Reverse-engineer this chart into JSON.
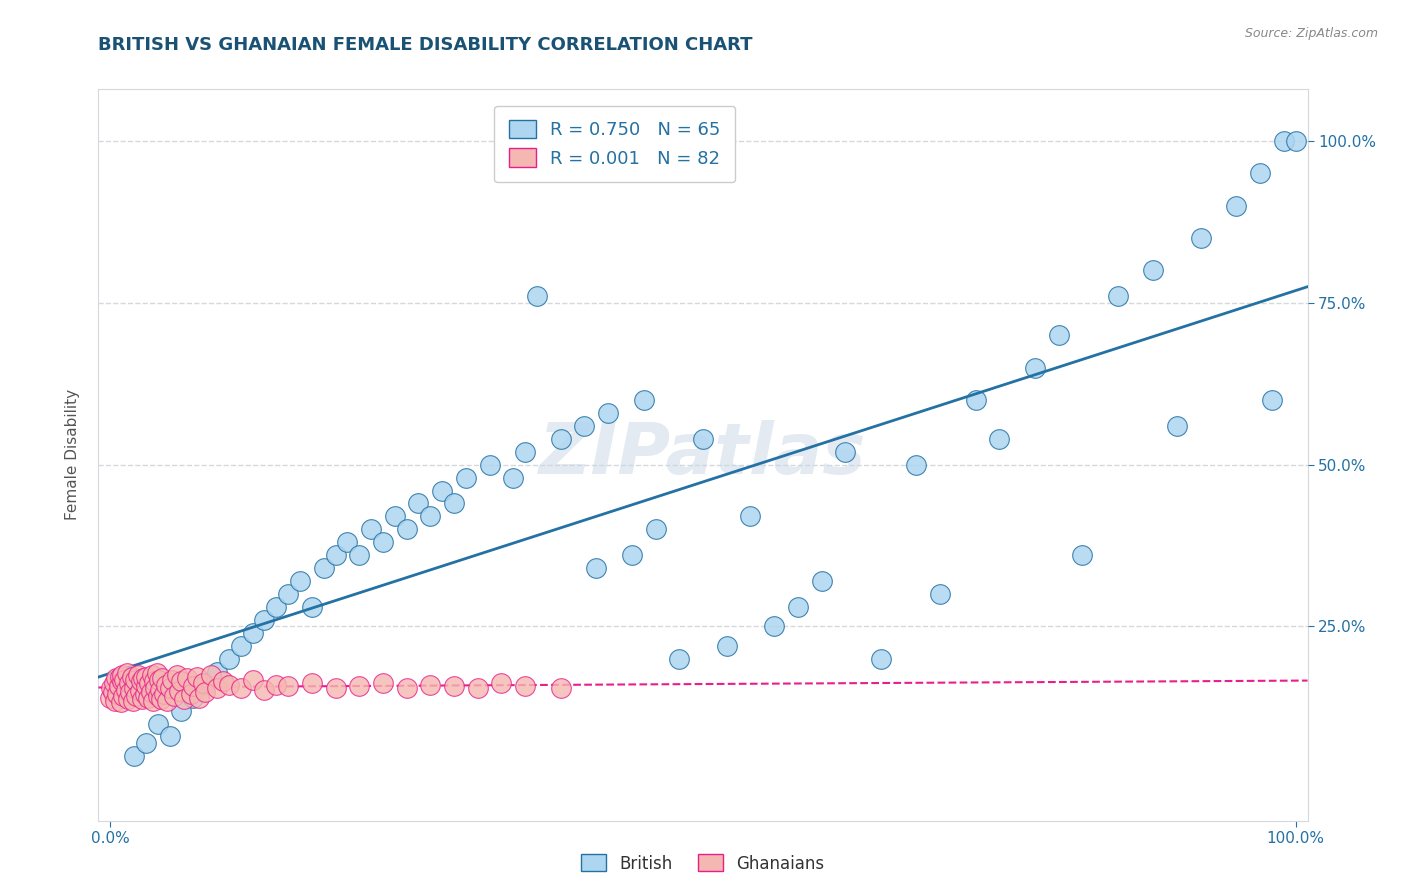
{
  "title": "BRITISH VS GHANAIAN FEMALE DISABILITY CORRELATION CHART",
  "source": "Source: ZipAtlas.com",
  "ylabel": "Female Disability",
  "title_color": "#1a5276",
  "axis_label_color": "#555555",
  "tick_color": "#2471a3",
  "british_color": "#aed6f1",
  "british_line_color": "#2471a3",
  "ghanaian_color": "#f5b7b1",
  "ghanaian_line_color": "#e91e8c",
  "british_R": 0.75,
  "british_N": 65,
  "ghanaian_R": 0.001,
  "ghanaian_N": 82,
  "legend_color": "#2471a3",
  "british_scatter_x": [
    0.02,
    0.03,
    0.04,
    0.05,
    0.06,
    0.07,
    0.08,
    0.09,
    0.1,
    0.11,
    0.12,
    0.13,
    0.14,
    0.15,
    0.16,
    0.17,
    0.18,
    0.19,
    0.2,
    0.21,
    0.22,
    0.23,
    0.24,
    0.25,
    0.26,
    0.27,
    0.28,
    0.29,
    0.3,
    0.32,
    0.34,
    0.35,
    0.36,
    0.38,
    0.4,
    0.41,
    0.42,
    0.44,
    0.45,
    0.46,
    0.48,
    0.5,
    0.52,
    0.54,
    0.56,
    0.58,
    0.6,
    0.62,
    0.65,
    0.68,
    0.7,
    0.73,
    0.75,
    0.78,
    0.8,
    0.82,
    0.85,
    0.88,
    0.9,
    0.92,
    0.95,
    0.97,
    0.98,
    0.99,
    1.0
  ],
  "british_scatter_y": [
    0.05,
    0.07,
    0.1,
    0.08,
    0.12,
    0.14,
    0.16,
    0.18,
    0.2,
    0.22,
    0.24,
    0.26,
    0.28,
    0.3,
    0.32,
    0.28,
    0.34,
    0.36,
    0.38,
    0.36,
    0.4,
    0.38,
    0.42,
    0.4,
    0.44,
    0.42,
    0.46,
    0.44,
    0.48,
    0.5,
    0.48,
    0.52,
    0.76,
    0.54,
    0.56,
    0.34,
    0.58,
    0.36,
    0.6,
    0.4,
    0.2,
    0.54,
    0.22,
    0.42,
    0.25,
    0.28,
    0.32,
    0.52,
    0.2,
    0.5,
    0.3,
    0.6,
    0.54,
    0.65,
    0.7,
    0.36,
    0.76,
    0.8,
    0.56,
    0.85,
    0.9,
    0.95,
    0.6,
    1.0,
    1.0
  ],
  "ghanaian_scatter_x": [
    0.0,
    0.001,
    0.002,
    0.003,
    0.004,
    0.005,
    0.006,
    0.007,
    0.008,
    0.009,
    0.01,
    0.01,
    0.011,
    0.012,
    0.013,
    0.014,
    0.015,
    0.016,
    0.017,
    0.018,
    0.019,
    0.02,
    0.021,
    0.022,
    0.023,
    0.025,
    0.026,
    0.027,
    0.028,
    0.029,
    0.03,
    0.03,
    0.032,
    0.033,
    0.034,
    0.035,
    0.036,
    0.037,
    0.038,
    0.039,
    0.04,
    0.041,
    0.042,
    0.043,
    0.044,
    0.045,
    0.047,
    0.048,
    0.05,
    0.052,
    0.054,
    0.056,
    0.058,
    0.06,
    0.062,
    0.065,
    0.068,
    0.07,
    0.073,
    0.075,
    0.078,
    0.08,
    0.085,
    0.09,
    0.095,
    0.1,
    0.11,
    0.12,
    0.13,
    0.14,
    0.15,
    0.17,
    0.19,
    0.21,
    0.23,
    0.25,
    0.27,
    0.29,
    0.31,
    0.33,
    0.35,
    0.38
  ],
  "ghanaian_scatter_y": [
    0.14,
    0.155,
    0.148,
    0.162,
    0.135,
    0.17,
    0.145,
    0.158,
    0.172,
    0.133,
    0.165,
    0.175,
    0.142,
    0.168,
    0.152,
    0.178,
    0.138,
    0.163,
    0.148,
    0.172,
    0.135,
    0.155,
    0.168,
    0.142,
    0.175,
    0.15,
    0.165,
    0.138,
    0.17,
    0.145,
    0.158,
    0.172,
    0.14,
    0.163,
    0.148,
    0.175,
    0.135,
    0.165,
    0.155,
    0.178,
    0.142,
    0.168,
    0.152,
    0.138,
    0.17,
    0.145,
    0.16,
    0.135,
    0.155,
    0.168,
    0.142,
    0.175,
    0.15,
    0.165,
    0.138,
    0.17,
    0.145,
    0.158,
    0.172,
    0.14,
    0.163,
    0.148,
    0.175,
    0.155,
    0.165,
    0.16,
    0.155,
    0.168,
    0.152,
    0.16,
    0.158,
    0.162,
    0.155,
    0.158,
    0.162,
    0.155,
    0.16,
    0.158,
    0.155,
    0.162,
    0.158,
    0.155
  ],
  "xlim": [
    -0.01,
    1.01
  ],
  "ylim": [
    -0.05,
    1.08
  ],
  "xtick_positions": [
    0.0,
    1.0
  ],
  "xtick_labels": [
    "0.0%",
    "100.0%"
  ],
  "ytick_values": [
    0.25,
    0.5,
    0.75,
    1.0
  ],
  "ytick_labels": [
    "25.0%",
    "50.0%",
    "75.0%",
    "100.0%"
  ],
  "grid_color": "#d5d8dc",
  "watermark": "ZIPatlas",
  "bg_color": "#ffffff"
}
